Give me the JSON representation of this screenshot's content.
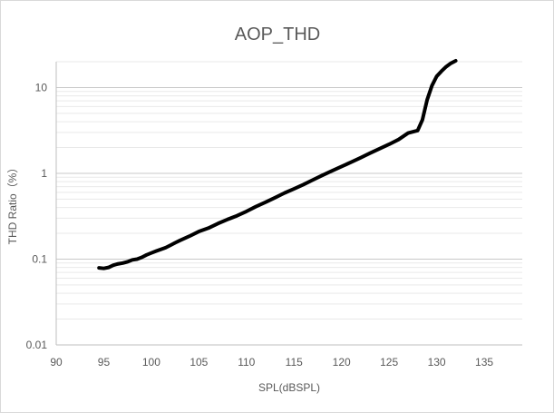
{
  "chart_data": {
    "type": "line",
    "title": "AOP_THD",
    "xlabel": "SPL(dBSPL)",
    "ylabel": "THD Ratio（%）",
    "xlim": [
      90,
      139
    ],
    "ylim": [
      0.01,
      20
    ],
    "y_scale": "log",
    "x_ticks": [
      90,
      95,
      100,
      105,
      110,
      115,
      120,
      125,
      130,
      135
    ],
    "x_tick_labels": [
      "90",
      "95",
      "100",
      "105",
      "110",
      "115",
      "120",
      "125",
      "130",
      "135"
    ],
    "y_ticks": [
      0.01,
      0.1,
      1,
      10
    ],
    "y_tick_labels": [
      "0.01",
      "0.1",
      "1",
      "10"
    ],
    "grid": true,
    "legend": "none",
    "series": [
      {
        "x": [
          94.5,
          95.0,
          95.5,
          96.0,
          96.5,
          97.0,
          97.5,
          98.0,
          98.5,
          99.0,
          99.5,
          100.0,
          100.5,
          101.0,
          101.5,
          102.0,
          102.5,
          103.0,
          104.0,
          105.0,
          106.0,
          107.0,
          108.0,
          109.0,
          110.0,
          111.0,
          112.0,
          113.0,
          114.0,
          115.0,
          116.0,
          117.0,
          118.0,
          119.0,
          120.0,
          121.0,
          122.0,
          123.0,
          124.0,
          125.0,
          126.0,
          127.0,
          128.0,
          128.5,
          129.0,
          129.5,
          130.0,
          130.5,
          131.0,
          131.5,
          132.0
        ],
        "y": [
          0.079,
          0.078,
          0.08,
          0.085,
          0.088,
          0.09,
          0.093,
          0.098,
          0.1,
          0.105,
          0.112,
          0.118,
          0.124,
          0.13,
          0.136,
          0.145,
          0.155,
          0.165,
          0.185,
          0.21,
          0.23,
          0.26,
          0.29,
          0.32,
          0.36,
          0.41,
          0.46,
          0.52,
          0.59,
          0.66,
          0.74,
          0.84,
          0.95,
          1.07,
          1.2,
          1.35,
          1.52,
          1.72,
          1.94,
          2.18,
          2.48,
          2.95,
          3.15,
          4.2,
          7.2,
          10.5,
          13.5,
          15.5,
          17.5,
          19.2,
          20.5
        ]
      }
    ]
  }
}
